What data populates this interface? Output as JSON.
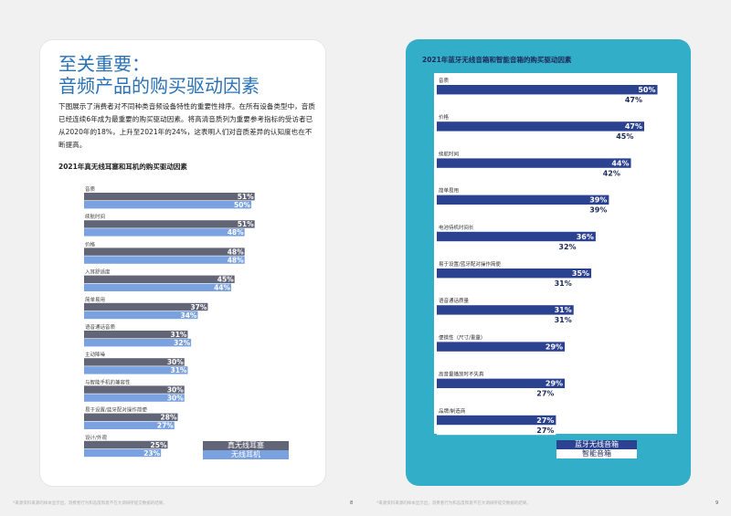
{
  "left": {
    "title_line1": "至关重要：",
    "title_line2": "音频产品的购买驱动因素",
    "intro": "下图展示了消费者对不同种类音频设备特性的重要性排序。在所有设备类型中，音质已经连续6年成为最重要的购买驱动因素。将高清音质列为重要参考指标的受访者已从2020年的18%，上升至2021年的24%，这表明人们对音质差异的认知度也在不断提高。",
    "chart_title": "2021年真无线耳塞和耳机的购买驱动因素",
    "footnote": "*来源资料来源的样本显示出，消费者行为和态度和意不在大调研所提交数据的结果。",
    "page_number": "8"
  },
  "right": {
    "chart_title": "2021年蓝牙无线音箱和智能音箱的购买驱动因素",
    "footnote": "*来源资料来源的样本显示出，消费者行为和态度和意不在大调研所提交数据的结果。",
    "page_number": "9"
  },
  "colors": {
    "left_series1": "#616575",
    "left_series2": "#7aa2e0",
    "right_series1": "#2b4291",
    "right_series2": "#ffffff",
    "right_bg": "#33aec9",
    "title_blue": "#2a72b8"
  },
  "chart_data": [
    {
      "type": "bar",
      "orientation": "horizontal",
      "title": "2021年真无线耳塞和耳机的购买驱动因素",
      "categories": [
        "音质",
        "续航时间",
        "价格",
        "入耳舒适度",
        "简单易用",
        "语音通话音质",
        "主动降噪",
        "与智能手机的兼容性",
        "易于设置/蓝牙配对操作简便",
        "设计/外观"
      ],
      "series": [
        {
          "name": "真无线耳塞",
          "values": [
            51,
            51,
            48,
            45,
            37,
            31,
            30,
            30,
            28,
            25
          ],
          "labels": [
            "51%",
            "51%",
            "48%",
            "45%",
            "37%",
            "31%",
            "30%",
            "30%",
            "28%",
            "25%"
          ]
        },
        {
          "name": "无线耳机",
          "values": [
            50,
            48,
            48,
            44,
            34,
            32,
            31,
            30,
            27,
            23
          ],
          "labels": [
            "50%",
            "48%",
            "48%",
            "44%",
            "34%",
            "32%",
            "31%",
            "30%",
            "27%",
            "23%"
          ]
        }
      ],
      "legend_position": "bottom-right"
    },
    {
      "type": "bar",
      "orientation": "horizontal",
      "title": "2021年蓝牙无线音箱和智能音箱的购买驱动因素",
      "categories": [
        "音质",
        "价格",
        "续航时间",
        "简单易用",
        "电池待机时间长",
        "易于设置/蓝牙配对操作简便",
        "语音通话质量",
        "便携性（尺寸/重量）",
        "高音量播放时不失真",
        "品牌/制造商"
      ],
      "series": [
        {
          "name": "蓝牙无线音箱",
          "values": [
            50,
            47,
            44,
            39,
            36,
            35,
            31,
            29,
            29,
            27
          ],
          "labels": [
            "50%",
            "47%",
            "44%",
            "39%",
            "36%",
            "35%",
            "31%",
            "29%",
            "29%",
            "27%"
          ]
        },
        {
          "name": "智能音箱",
          "values": [
            47,
            45,
            42,
            39,
            32,
            31,
            31,
            null,
            27,
            27
          ],
          "labels": [
            "47%",
            "45%",
            "42%",
            "39%",
            "32%",
            "31%",
            "31%",
            "",
            "27%",
            "27%"
          ]
        }
      ],
      "legend_position": "bottom-right"
    }
  ]
}
